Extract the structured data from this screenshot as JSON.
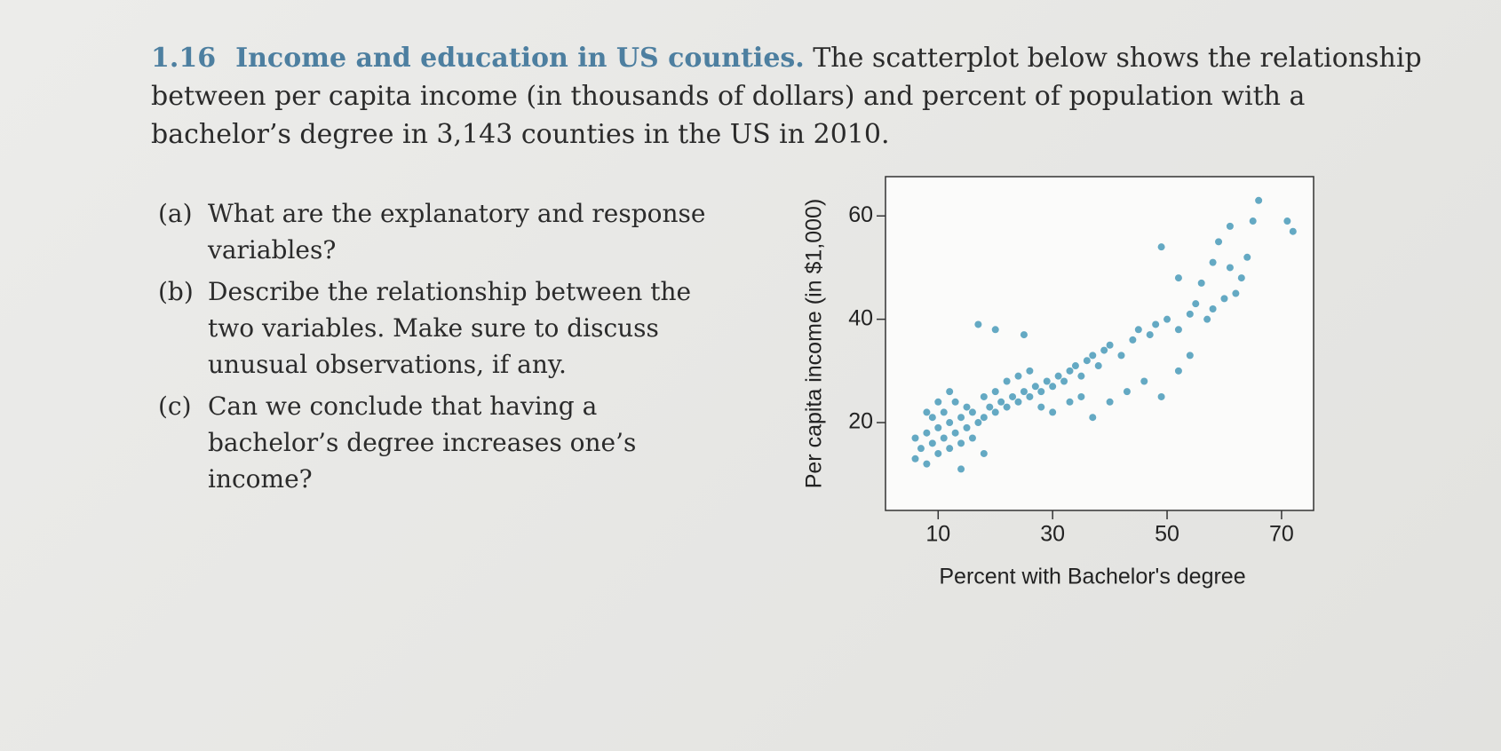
{
  "problem": {
    "number": "1.16",
    "title": "Income and education in US counties.",
    "intro": "The scatterplot below shows the relationship between per capita income (in thousands of dollars) and percent of population with a bachelor’s degree in 3,143 counties in the US in 2010.",
    "parts": [
      {
        "label": "(a)",
        "text": "What are the explanatory and response variables?"
      },
      {
        "label": "(b)",
        "text": "Describe the relationship between the two variables. Make sure to discuss unusual observations, if any."
      },
      {
        "label": "(c)",
        "text": "Can we conclude that having a bachelor’s degree increases one’s income?"
      }
    ]
  },
  "chart_data": {
    "type": "scatter",
    "x_label": "Percent with Bachelor's degree",
    "y_label": "Per capita income (in $1,000)",
    "xlim": [
      0.8,
      75.6
    ],
    "ylim": [
      3,
      67.6
    ],
    "xticks": [
      10,
      30,
      50,
      70
    ],
    "yticks": [
      20,
      40,
      60
    ],
    "color": "#3f95b5",
    "x": [
      6,
      7,
      8,
      9,
      10,
      11,
      12,
      13,
      14,
      15,
      16,
      17,
      18,
      19,
      20,
      21,
      22,
      23,
      24,
      25,
      26,
      27,
      28,
      29,
      30,
      31,
      32,
      33,
      34,
      35,
      36,
      37,
      38,
      39,
      40,
      42,
      44,
      45,
      47,
      48,
      50,
      52,
      54,
      55,
      57,
      58,
      6,
      8,
      10,
      12,
      14,
      16,
      9,
      11,
      13,
      15,
      18,
      20,
      22,
      24,
      26,
      28,
      30,
      33,
      35,
      37,
      40,
      43,
      46,
      49,
      52,
      17,
      20,
      25,
      52,
      56,
      60,
      62,
      49,
      58,
      61,
      63,
      64,
      65,
      71,
      72,
      66,
      61,
      59,
      54,
      14,
      18,
      12,
      10,
      8
    ],
    "values": [
      17,
      15,
      18,
      16,
      19,
      17,
      20,
      18,
      21,
      19,
      22,
      20,
      21,
      23,
      22,
      24,
      23,
      25,
      24,
      26,
      25,
      27,
      26,
      28,
      27,
      29,
      28,
      30,
      31,
      29,
      32,
      33,
      31,
      34,
      35,
      33,
      36,
      38,
      37,
      39,
      40,
      38,
      41,
      43,
      40,
      42,
      13,
      12,
      14,
      15,
      16,
      17,
      21,
      22,
      24,
      23,
      25,
      26,
      28,
      29,
      30,
      23,
      22,
      24,
      25,
      21,
      24,
      26,
      28,
      25,
      30,
      39,
      38,
      37,
      48,
      47,
      44,
      45,
      54,
      51,
      50,
      48,
      52,
      59,
      59,
      57,
      63,
      58,
      55,
      33,
      11,
      14,
      26,
      24,
      22
    ]
  }
}
